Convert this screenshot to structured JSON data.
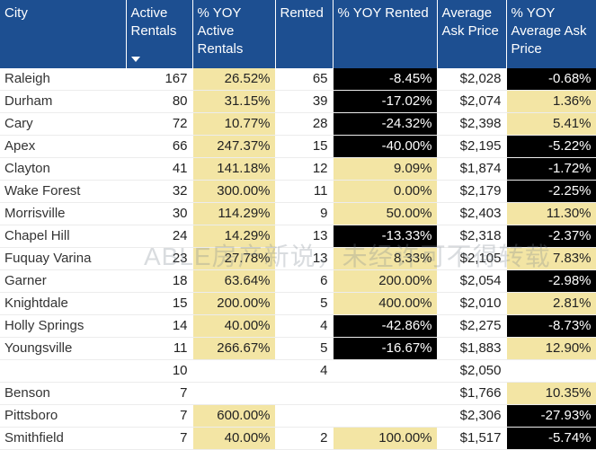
{
  "headers": [
    {
      "label": "City"
    },
    {
      "label": "Active Rentals"
    },
    {
      "label": "% YOY Active Rentals"
    },
    {
      "label": "Rented"
    },
    {
      "label": "% YOY Rented"
    },
    {
      "label": "Average Ask Price"
    },
    {
      "label": "% YOY Average Ask Price"
    }
  ],
  "sort_indicator": "sort-descending",
  "rows": [
    {
      "city": "Raleigh",
      "active": "167",
      "yoy_active": "26.52%",
      "rented": "65",
      "yoy_rented": "-8.45%",
      "price": "$2,028",
      "yoy_price": "-0.68%"
    },
    {
      "city": "Durham",
      "active": "80",
      "yoy_active": "31.15%",
      "rented": "39",
      "yoy_rented": "-17.02%",
      "price": "$2,074",
      "yoy_price": "1.36%"
    },
    {
      "city": "Cary",
      "active": "72",
      "yoy_active": "10.77%",
      "rented": "28",
      "yoy_rented": "-24.32%",
      "price": "$2,398",
      "yoy_price": "5.41%"
    },
    {
      "city": "Apex",
      "active": "66",
      "yoy_active": "247.37%",
      "rented": "15",
      "yoy_rented": "-40.00%",
      "price": "$2,195",
      "yoy_price": "-5.22%"
    },
    {
      "city": "Clayton",
      "active": "41",
      "yoy_active": "141.18%",
      "rented": "12",
      "yoy_rented": "9.09%",
      "price": "$1,874",
      "yoy_price": "-1.72%"
    },
    {
      "city": "Wake Forest",
      "active": "32",
      "yoy_active": "300.00%",
      "rented": "11",
      "yoy_rented": "0.00%",
      "price": "$2,179",
      "yoy_price": "-2.25%"
    },
    {
      "city": "Morrisville",
      "active": "30",
      "yoy_active": "114.29%",
      "rented": "9",
      "yoy_rented": "50.00%",
      "price": "$2,403",
      "yoy_price": "11.30%"
    },
    {
      "city": "Chapel Hill",
      "active": "24",
      "yoy_active": "14.29%",
      "rented": "13",
      "yoy_rented": "-13.33%",
      "price": "$2,318",
      "yoy_price": "-2.37%"
    },
    {
      "city": "Fuquay Varina",
      "active": "23",
      "yoy_active": "27.78%",
      "rented": "13",
      "yoy_rented": "8.33%",
      "price": "$2,105",
      "yoy_price": "7.83%"
    },
    {
      "city": "Garner",
      "active": "18",
      "yoy_active": "63.64%",
      "rented": "6",
      "yoy_rented": "200.00%",
      "price": "$2,054",
      "yoy_price": "-2.98%"
    },
    {
      "city": "Knightdale",
      "active": "15",
      "yoy_active": "200.00%",
      "rented": "5",
      "yoy_rented": "400.00%",
      "price": "$2,010",
      "yoy_price": "2.81%"
    },
    {
      "city": "Holly Springs",
      "active": "14",
      "yoy_active": "40.00%",
      "rented": "4",
      "yoy_rented": "-42.86%",
      "price": "$2,275",
      "yoy_price": "-8.73%"
    },
    {
      "city": "Youngsville",
      "active": "11",
      "yoy_active": "266.67%",
      "rented": "5",
      "yoy_rented": "-16.67%",
      "price": "$1,883",
      "yoy_price": "12.90%"
    },
    {
      "city": "",
      "active": "10",
      "yoy_active": "",
      "rented": "4",
      "yoy_rented": "",
      "price": "$2,050",
      "yoy_price": ""
    },
    {
      "city": "Benson",
      "active": "7",
      "yoy_active": "",
      "rented": "",
      "yoy_rented": "",
      "price": "$1,766",
      "yoy_price": "10.35%"
    },
    {
      "city": "Pittsboro",
      "active": "7",
      "yoy_active": "600.00%",
      "rented": "",
      "yoy_rented": "",
      "price": "$2,306",
      "yoy_price": "-27.93%"
    },
    {
      "city": "Smithfield",
      "active": "7",
      "yoy_active": "40.00%",
      "rented": "2",
      "yoy_rented": "100.00%",
      "price": "$1,517",
      "yoy_price": "-5.74%"
    }
  ],
  "highlight_colors": {
    "positive": "#f3e5a4",
    "negative": "#000000",
    "header": "#1d4f91"
  },
  "watermark": "ABLE房产新说，未经许可不得转载"
}
